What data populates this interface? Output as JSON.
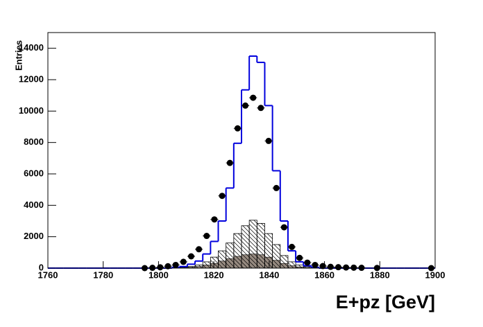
{
  "chart_data": {
    "type": "histogram",
    "x_label": "E+pz [GeV]",
    "y_label": "Entries",
    "bins": [
      1760,
      1762.8,
      1765.6,
      1768.4,
      1771.2,
      1774,
      1776.8,
      1779.6,
      1782.4,
      1785.2,
      1788,
      1790.8,
      1793.6,
      1796.4,
      1799.2,
      1802,
      1804.8,
      1807.6,
      1810.4,
      1813.2,
      1816,
      1818.8,
      1821.6,
      1824.4,
      1827.2,
      1830,
      1832.8,
      1835.6,
      1838.4,
      1841.2,
      1844,
      1846.8,
      1849.6,
      1852.4,
      1855.2,
      1858,
      1860.8,
      1863.6,
      1866.4,
      1869.2,
      1872,
      1874.8,
      1877.6,
      1880.4,
      1883.2,
      1886,
      1888.8,
      1891.6,
      1894.4,
      1897.2,
      1900
    ],
    "xlim": [
      1760,
      1900
    ],
    "xticks": [
      1760,
      1780,
      1800,
      1820,
      1840,
      1860,
      1880,
      1900
    ],
    "ylim": [
      0,
      15000
    ],
    "yticks": [
      0,
      2000,
      4000,
      6000,
      8000,
      10000,
      12000,
      14000
    ],
    "series": [
      {
        "style": "filled",
        "color": "#968a80",
        "values": [
          0,
          0,
          0,
          0,
          0,
          0,
          0,
          0,
          0,
          0,
          0,
          0,
          0,
          0,
          0,
          0,
          0,
          20,
          50,
          100,
          200,
          300,
          450,
          600,
          750,
          850,
          900,
          850,
          700,
          500,
          300,
          150,
          80,
          40,
          20,
          0,
          0,
          0,
          0,
          0,
          0,
          0,
          0,
          0,
          0,
          0,
          0,
          0,
          0,
          0
        ]
      },
      {
        "style": "hatched",
        "color": "#000000",
        "values": [
          0,
          0,
          0,
          0,
          0,
          0,
          0,
          0,
          0,
          0,
          0,
          0,
          0,
          0,
          0,
          0,
          0,
          50,
          100,
          200,
          400,
          700,
          1100,
          1600,
          2200,
          2700,
          3050,
          2850,
          2200,
          1500,
          800,
          400,
          200,
          100,
          50,
          0,
          0,
          0,
          0,
          0,
          0,
          0,
          0,
          0,
          0,
          0,
          0,
          0,
          0,
          0
        ]
      },
      {
        "style": "step",
        "color": "#0000dd",
        "values": [
          0,
          0,
          0,
          0,
          0,
          0,
          0,
          0,
          0,
          0,
          0,
          0,
          0,
          0,
          0,
          0,
          50,
          100,
          250,
          450,
          900,
          1700,
          3000,
          5100,
          7950,
          11350,
          13500,
          13100,
          10350,
          6200,
          3000,
          1100,
          400,
          150,
          50,
          0,
          0,
          0,
          0,
          0,
          0,
          0,
          0,
          0,
          0,
          0,
          0,
          0,
          0,
          0
        ]
      },
      {
        "style": "markers",
        "color": "#000000",
        "values": [
          null,
          null,
          null,
          null,
          null,
          null,
          null,
          null,
          null,
          null,
          null,
          null,
          0,
          20,
          50,
          120,
          200,
          400,
          750,
          1200,
          2050,
          3100,
          4600,
          6700,
          8900,
          10350,
          10850,
          10200,
          8100,
          5100,
          2600,
          1350,
          650,
          350,
          200,
          130,
          80,
          60,
          40,
          30,
          20,
          null,
          10,
          null,
          null,
          null,
          null,
          null,
          null,
          0
        ]
      }
    ]
  }
}
